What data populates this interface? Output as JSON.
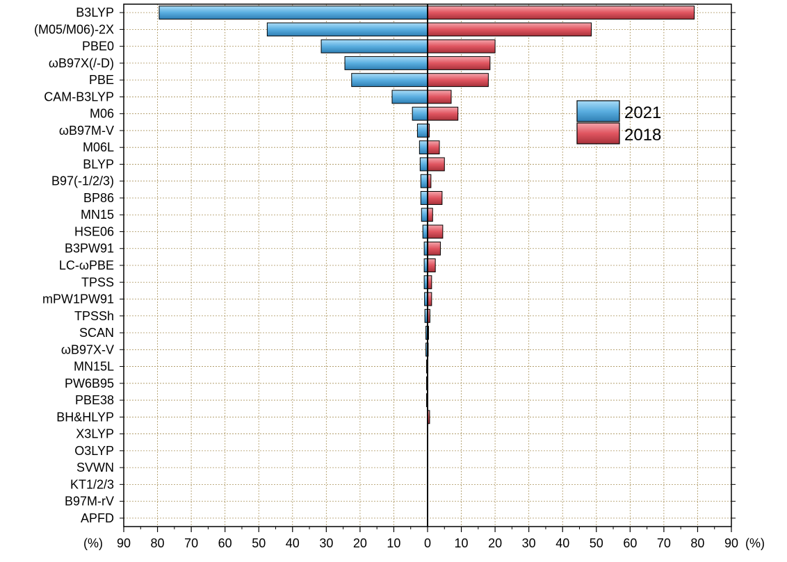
{
  "chart_data": {
    "type": "bar",
    "orientation": "horizontal",
    "layout": "diverging (butterfly), 2021 plotted to the left, 2018 plotted to the right",
    "x_unit_label_left": "(%)",
    "x_unit_label_right": "(%)",
    "xlim": [
      -90,
      90
    ],
    "x_tick_labels": [
      "90",
      "80",
      "70",
      "60",
      "50",
      "40",
      "30",
      "20",
      "10",
      "0",
      "10",
      "20",
      "30",
      "40",
      "50",
      "60",
      "70",
      "80",
      "90"
    ],
    "grid": "dotted horizontal and vertical gridlines",
    "legend_position": "upper right",
    "categories": [
      "B3LYP",
      "(M05/M06)-2X",
      "PBE0",
      "ωB97X(/-D)",
      "PBE",
      "CAM-B3LYP",
      "M06",
      "ωB97M-V",
      "M06L",
      "BLYP",
      "B97(-1/2/3)",
      "BP86",
      "MN15",
      "HSE06",
      "B3PW91",
      "LC-ωPBE",
      "TPSS",
      "mPW1PW91",
      "TPSSh",
      "SCAN",
      "ωB97X-V",
      "MN15L",
      "PW6B95",
      "PBE38",
      "BH&HLYP",
      "X3LYP",
      "O3LYP",
      "SVWN",
      "KT1/2/3",
      "B97M-rV",
      "APFD"
    ],
    "series": [
      {
        "name": "2021",
        "color": "#5aaee0",
        "side": "left",
        "values": [
          79.5,
          47.5,
          31.5,
          24.5,
          22.5,
          10.5,
          4.5,
          3.0,
          2.4,
          2.2,
          2.0,
          2.0,
          1.8,
          1.4,
          1.0,
          1.0,
          1.0,
          0.9,
          0.8,
          0.5,
          0.5,
          0.3,
          0.3,
          0.3,
          0.0,
          0.0,
          0.0,
          0.0,
          0.0,
          0.0,
          0.0
        ]
      },
      {
        "name": "2018",
        "color": "#e05560",
        "side": "right",
        "values": [
          79.0,
          48.5,
          20.0,
          18.5,
          18.0,
          7.0,
          9.0,
          0.5,
          3.5,
          5.0,
          1.0,
          4.3,
          1.5,
          4.5,
          3.8,
          2.3,
          1.2,
          1.2,
          0.7,
          0.3,
          0.2,
          0.0,
          0.0,
          0.0,
          0.6,
          0.0,
          0.0,
          0.0,
          0.0,
          0.0,
          0.0
        ]
      }
    ]
  }
}
